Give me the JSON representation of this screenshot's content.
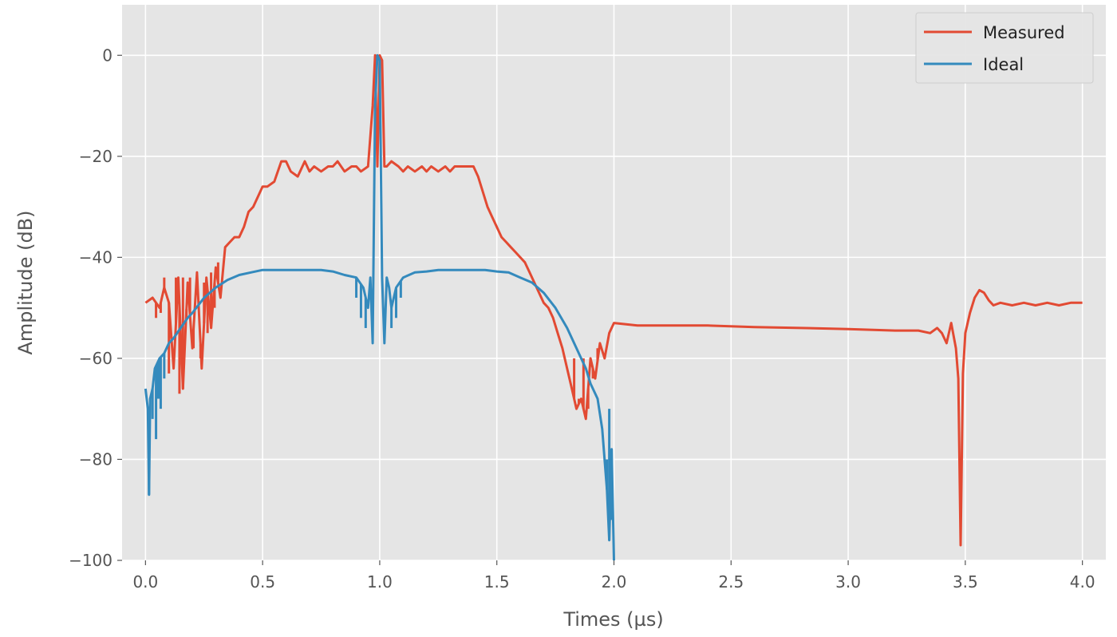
{
  "chart_data": {
    "type": "line",
    "title": "",
    "xlabel": "Times (µs)",
    "ylabel": "Amplitude (dB)",
    "xlim": [
      -0.1,
      4.1
    ],
    "ylim": [
      -100,
      10
    ],
    "x_ticks": [
      0.0,
      0.5,
      1.0,
      1.5,
      2.0,
      2.5,
      3.0,
      3.5,
      4.0
    ],
    "x_tick_labels": [
      "0.0",
      "0.5",
      "1.0",
      "1.5",
      "2.0",
      "2.5",
      "3.0",
      "3.5",
      "4.0"
    ],
    "y_ticks": [
      0,
      -20,
      -40,
      -60,
      -80,
      -100
    ],
    "y_tick_labels": [
      "0",
      "−20",
      "−40",
      "−60",
      "−80",
      "−100"
    ],
    "grid": true,
    "legend_position": "top-right",
    "colors": {
      "background": "#e5e5e5",
      "grid": "#ffffff",
      "measured": "#e24a33",
      "ideal": "#348abd"
    },
    "series": [
      {
        "name": "Measured",
        "color": "#e24a33",
        "x": [
          0.0,
          0.03,
          0.06,
          0.08,
          0.1,
          0.12,
          0.14,
          0.16,
          0.18,
          0.2,
          0.22,
          0.24,
          0.26,
          0.28,
          0.3,
          0.32,
          0.34,
          0.36,
          0.38,
          0.4,
          0.42,
          0.44,
          0.46,
          0.48,
          0.5,
          0.52,
          0.55,
          0.58,
          0.6,
          0.62,
          0.65,
          0.68,
          0.7,
          0.72,
          0.75,
          0.78,
          0.8,
          0.82,
          0.85,
          0.88,
          0.9,
          0.92,
          0.95,
          0.97,
          0.98,
          0.99,
          1.0,
          1.01,
          1.02,
          1.03,
          1.05,
          1.08,
          1.1,
          1.12,
          1.15,
          1.18,
          1.2,
          1.22,
          1.25,
          1.28,
          1.3,
          1.32,
          1.35,
          1.38,
          1.4,
          1.42,
          1.44,
          1.46,
          1.48,
          1.5,
          1.52,
          1.54,
          1.56,
          1.58,
          1.6,
          1.62,
          1.64,
          1.66,
          1.68,
          1.7,
          1.72,
          1.74,
          1.76,
          1.78,
          1.8,
          1.82,
          1.84,
          1.86,
          1.88,
          1.9,
          1.92,
          1.94,
          1.96,
          1.98,
          2.0,
          2.1,
          2.2,
          2.4,
          2.6,
          2.8,
          3.0,
          3.2,
          3.3,
          3.35,
          3.38,
          3.4,
          3.42,
          3.44,
          3.46,
          3.47,
          3.48,
          3.49,
          3.5,
          3.52,
          3.54,
          3.56,
          3.58,
          3.6,
          3.62,
          3.65,
          3.7,
          3.75,
          3.8,
          3.85,
          3.9,
          3.95,
          4.0
        ],
        "y": [
          -49,
          -48,
          -50,
          -46,
          -49,
          -62,
          -44,
          -66,
          -45,
          -58,
          -43,
          -62,
          -44,
          -54,
          -42,
          -48,
          -38,
          -37,
          -36,
          -36,
          -34,
          -31,
          -30,
          -28,
          -26,
          -26,
          -25,
          -21,
          -21,
          -23,
          -24,
          -21,
          -23,
          -22,
          -23,
          -22,
          -22,
          -21,
          -23,
          -22,
          -22,
          -23,
          -22,
          -10,
          0,
          -22,
          0,
          -1,
          -22,
          -22,
          -21,
          -22,
          -23,
          -22,
          -23,
          -22,
          -23,
          -22,
          -23,
          -22,
          -23,
          -22,
          -22,
          -22,
          -22,
          -24,
          -27,
          -30,
          -32,
          -34,
          -36,
          -37,
          -38,
          -39,
          -40,
          -41,
          -43,
          -45,
          -47,
          -49,
          -50,
          -52,
          -55,
          -58,
          -62,
          -66,
          -70,
          -68,
          -72,
          -60,
          -64,
          -57,
          -60,
          -55,
          -53,
          -53.5,
          -53.5,
          -53.5,
          -53.8,
          -54,
          -54.2,
          -54.5,
          -54.5,
          -55,
          -54,
          -55,
          -57,
          -53,
          -58,
          -64,
          -97,
          -63,
          -55,
          -51,
          -48,
          -46.5,
          -47,
          -48.5,
          -49.5,
          -49,
          -49.5,
          -49,
          -49.5,
          -49,
          -49.5,
          -49,
          -49
        ],
        "spikes": [
          {
            "x": 0.045,
            "y": -52
          },
          {
            "x": 0.065,
            "y": -51
          },
          {
            "x": 0.08,
            "y": -44
          },
          {
            "x": 0.1,
            "y": -63
          },
          {
            "x": 0.11,
            "y": -56
          },
          {
            "x": 0.13,
            "y": -44
          },
          {
            "x": 0.145,
            "y": -67
          },
          {
            "x": 0.16,
            "y": -44
          },
          {
            "x": 0.175,
            "y": -52
          },
          {
            "x": 0.19,
            "y": -44
          },
          {
            "x": 0.205,
            "y": -58
          },
          {
            "x": 0.22,
            "y": -43
          },
          {
            "x": 0.235,
            "y": -60
          },
          {
            "x": 0.25,
            "y": -45
          },
          {
            "x": 0.265,
            "y": -55
          },
          {
            "x": 0.28,
            "y": -43
          },
          {
            "x": 0.295,
            "y": -50
          },
          {
            "x": 0.31,
            "y": -41
          },
          {
            "x": 1.83,
            "y": -60
          },
          {
            "x": 1.85,
            "y": -68
          },
          {
            "x": 1.87,
            "y": -60
          },
          {
            "x": 1.89,
            "y": -70
          },
          {
            "x": 1.91,
            "y": -64
          },
          {
            "x": 1.93,
            "y": -58
          }
        ]
      },
      {
        "name": "Ideal",
        "color": "#348abd",
        "x": [
          0.0,
          0.01,
          0.015,
          0.02,
          0.03,
          0.04,
          0.06,
          0.08,
          0.1,
          0.12,
          0.15,
          0.18,
          0.2,
          0.25,
          0.3,
          0.35,
          0.4,
          0.45,
          0.5,
          0.55,
          0.6,
          0.65,
          0.7,
          0.75,
          0.8,
          0.85,
          0.9,
          0.93,
          0.95,
          0.96,
          0.97,
          0.98,
          0.99,
          1.0,
          1.01,
          1.02,
          1.03,
          1.04,
          1.05,
          1.07,
          1.1,
          1.15,
          1.2,
          1.25,
          1.3,
          1.35,
          1.4,
          1.45,
          1.5,
          1.55,
          1.6,
          1.65,
          1.7,
          1.75,
          1.8,
          1.85,
          1.88,
          1.9,
          1.93,
          1.95,
          1.97,
          1.98,
          1.99,
          2.0
        ],
        "y": [
          -66,
          -70,
          -87,
          -68,
          -66,
          -62,
          -60,
          -59,
          -57,
          -56,
          -54,
          -52,
          -51,
          -48,
          -46,
          -44.5,
          -43.5,
          -43,
          -42.5,
          -42.5,
          -42.5,
          -42.5,
          -42.5,
          -42.5,
          -42.8,
          -43.5,
          -44,
          -46,
          -50,
          -44,
          -57,
          -10,
          0,
          -1,
          -44,
          -57,
          -44,
          -46,
          -50,
          -46,
          -44,
          -43,
          -42.8,
          -42.5,
          -42.5,
          -42.5,
          -42.5,
          -42.5,
          -42.8,
          -43,
          -44,
          -45,
          -47,
          -50,
          -54,
          -59,
          -62,
          -65,
          -68,
          -74,
          -86,
          -96,
          -78,
          -100
        ],
        "spikes": [
          {
            "x": 0.015,
            "y": -78
          },
          {
            "x": 0.03,
            "y": -72
          },
          {
            "x": 0.045,
            "y": -76
          },
          {
            "x": 0.055,
            "y": -68
          },
          {
            "x": 0.065,
            "y": -70
          },
          {
            "x": 0.08,
            "y": -64
          },
          {
            "x": 0.9,
            "y": -48
          },
          {
            "x": 0.92,
            "y": -52
          },
          {
            "x": 0.94,
            "y": -54
          },
          {
            "x": 1.05,
            "y": -54
          },
          {
            "x": 1.07,
            "y": -52
          },
          {
            "x": 1.09,
            "y": -48
          },
          {
            "x": 1.97,
            "y": -80
          },
          {
            "x": 1.98,
            "y": -70
          },
          {
            "x": 1.99,
            "y": -92
          }
        ]
      }
    ]
  }
}
